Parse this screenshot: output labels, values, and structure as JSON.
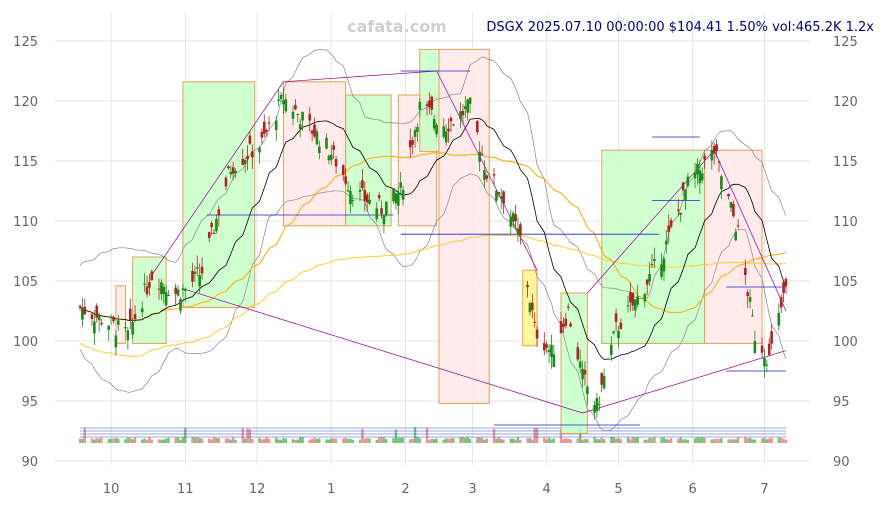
{
  "watermark": "cafata.com",
  "header": "DSGX 2025.07.10 00:00:00 $104.41 1.50% vol:465.2K 1.2x",
  "chart_data": {
    "type": "candlestick",
    "ticker": "DSGX",
    "ylim": [
      90,
      126
    ],
    "y_ticks": [
      90,
      95,
      100,
      105,
      110,
      115,
      120,
      125
    ],
    "x_tick_labels": [
      {
        "label": "10",
        "date": "2024-10-01"
      },
      {
        "label": "11",
        "date": "2024-11-01"
      },
      {
        "label": "12",
        "date": "2024-12-01"
      },
      {
        "label": "1",
        "date": "2025-01-01"
      },
      {
        "label": "2",
        "date": "2025-02-01"
      },
      {
        "label": "3",
        "date": "2025-03-01"
      },
      {
        "label": "4",
        "date": "2025-04-01"
      },
      {
        "label": "5",
        "date": "2025-05-01"
      },
      {
        "label": "6",
        "date": "2025-06-01"
      },
      {
        "label": "7",
        "date": "2025-07-01"
      }
    ],
    "date_range": [
      "2024-09-18",
      "2025-07-10"
    ],
    "last": {
      "date": "2025-07-10",
      "close": 104.41,
      "change_pct": 1.5,
      "volume": "465.2K",
      "vol_ratio": "1.2x"
    },
    "price_anchors": [
      {
        "date": "2024-09-18",
        "close": 102.8
      },
      {
        "date": "2024-09-30",
        "close": 101.5
      },
      {
        "date": "2024-10-08",
        "close": 100.5
      },
      {
        "date": "2024-10-18",
        "close": 105.5
      },
      {
        "date": "2024-10-28",
        "close": 104.0
      },
      {
        "date": "2024-11-01",
        "close": 104.3
      },
      {
        "date": "2024-11-08",
        "close": 105.8
      },
      {
        "date": "2024-11-20",
        "close": 114.5
      },
      {
        "date": "2024-12-03",
        "close": 116.5
      },
      {
        "date": "2024-12-12",
        "close": 120.3
      },
      {
        "date": "2024-12-20",
        "close": 118.5
      },
      {
        "date": "2024-12-31",
        "close": 116.0
      },
      {
        "date": "2025-01-10",
        "close": 112.5
      },
      {
        "date": "2025-01-22",
        "close": 111.0
      },
      {
        "date": "2025-01-30",
        "close": 112.5
      },
      {
        "date": "2025-02-07",
        "close": 119.5
      },
      {
        "date": "2025-02-18",
        "close": 118.0
      },
      {
        "date": "2025-02-28",
        "close": 119.5
      },
      {
        "date": "2025-03-07",
        "close": 114.0
      },
      {
        "date": "2025-03-14",
        "close": 112.0
      },
      {
        "date": "2025-03-21",
        "close": 108.5
      },
      {
        "date": "2025-03-27",
        "close": 101.0
      },
      {
        "date": "2025-04-03",
        "close": 99.0
      },
      {
        "date": "2025-04-10",
        "close": 102.5
      },
      {
        "date": "2025-04-16",
        "close": 97.0
      },
      {
        "date": "2025-04-22",
        "close": 94.5
      },
      {
        "date": "2025-04-30",
        "close": 101.0
      },
      {
        "date": "2025-05-09",
        "close": 103.5
      },
      {
        "date": "2025-05-20",
        "close": 107.5
      },
      {
        "date": "2025-05-30",
        "close": 113.0
      },
      {
        "date": "2025-06-10",
        "close": 115.8
      },
      {
        "date": "2025-06-20",
        "close": 109.0
      },
      {
        "date": "2025-06-27",
        "close": 100.5
      },
      {
        "date": "2025-07-03",
        "close": 98.5
      },
      {
        "date": "2025-07-10",
        "close": 104.41
      }
    ],
    "boxes": [
      {
        "start": "2024-10-03",
        "end": "2024-10-07",
        "low": 99.8,
        "high": 104.6,
        "color": "red"
      },
      {
        "start": "2024-10-10",
        "end": "2024-10-24",
        "low": 99.8,
        "high": 107.0,
        "color": "green"
      },
      {
        "start": "2024-10-31",
        "end": "2024-11-30",
        "low": 102.8,
        "high": 121.6,
        "color": "green"
      },
      {
        "start": "2024-12-12",
        "end": "2025-01-07",
        "low": 109.6,
        "high": 121.6,
        "color": "red"
      },
      {
        "start": "2025-01-07",
        "end": "2025-01-26",
        "low": 109.6,
        "high": 120.5,
        "color": "green"
      },
      {
        "start": "2025-01-29",
        "end": "2025-02-14",
        "low": 109.6,
        "high": 120.5,
        "color": "red"
      },
      {
        "start": "2025-02-07",
        "end": "2025-02-15",
        "low": 115.8,
        "high": 124.3,
        "color": "green"
      },
      {
        "start": "2025-02-15",
        "end": "2025-03-08",
        "low": 94.8,
        "high": 124.3,
        "color": "red"
      },
      {
        "start": "2025-03-22",
        "end": "2025-03-28",
        "low": 99.6,
        "high": 105.9,
        "color": "yellow"
      },
      {
        "start": "2025-04-07",
        "end": "2025-04-18",
        "low": 92.3,
        "high": 104.0,
        "color": "green"
      },
      {
        "start": "2025-04-24",
        "end": "2025-06-06",
        "low": 99.8,
        "high": 115.9,
        "color": "green"
      },
      {
        "start": "2025-06-06",
        "end": "2025-06-30",
        "low": 99.8,
        "high": 115.9,
        "color": "red"
      }
    ]
  }
}
